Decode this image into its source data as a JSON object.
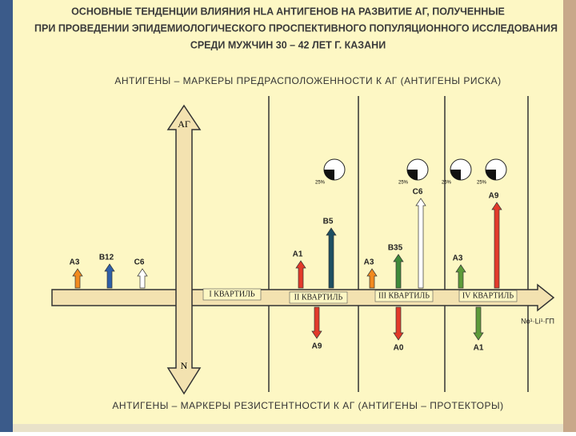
{
  "header": {
    "title_lines": [
      "ОСНОВНЫЕ ТЕНДЕНЦИИ ВЛИЯНИЯ HLA АНТИГЕНОВ НА РАЗВИТИЕ АГ, ПОЛУЧЕННЫЕ",
      "ПРИ ПРОВЕДЕНИИ ЭПИДЕМИОЛОГИЧЕСКОГО ПРОСПЕКТИВНОГО ПОПУЛЯЦИОННОГО ИССЛЕДОВАНИЯ",
      "СРЕДИ МУЖЧИН  30 – 42 ЛЕТ Г. КАЗАНИ"
    ]
  },
  "risk_caption": "АНТИГЕНЫ – МАРКЕРЫ ПРЕДРАСПОЛОЖЕННОСТИ К АГ (АНТИГЕНЫ РИСКА)",
  "protector_caption": "АНТИГЕНЫ – МАРКЕРЫ РЕЗИСТЕНТНОСТИ К АГ (АНТИГЕНЫ – ПРОТЕКТОРЫ)",
  "axis": {
    "up_label": "АГ",
    "down_label": "N",
    "right_label": "No¹·Li¹·ГП"
  },
  "quartiles": [
    "I КВАРТИЛЬ",
    "II КВАРТИЛЬ",
    "III КВАРТИЛЬ",
    "IV КВАРТИЛЬ"
  ],
  "risk_antigens": [
    "A3",
    "B12",
    "C6",
    "A1",
    "B5",
    "A3",
    "B35",
    "C6",
    "A3",
    "A9"
  ],
  "protector_antigens": [
    "A9",
    "A0",
    "A1"
  ],
  "pie_labels": [
    "25%",
    "25%",
    "25%",
    "25%"
  ]
}
